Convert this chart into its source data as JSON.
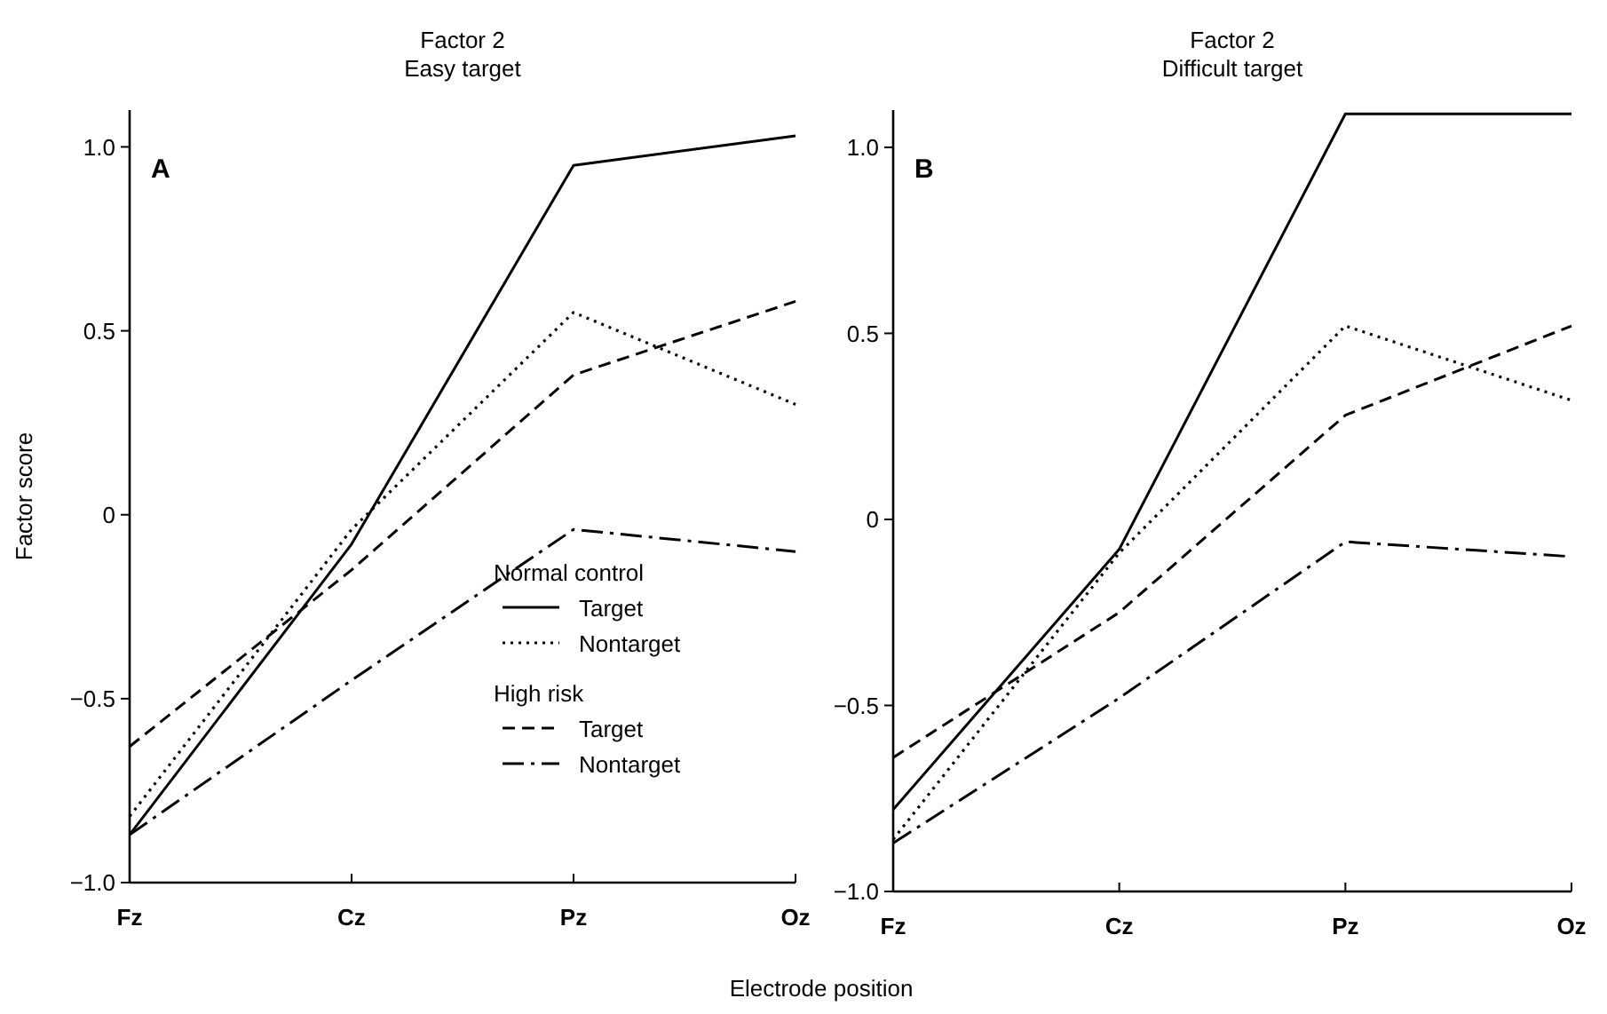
{
  "chart_data": [
    {
      "type": "line",
      "title": "Factor 2",
      "subtitle": "Easy target",
      "xlabel": "Electrode position",
      "ylabel": "Factor score",
      "categories": [
        "Fz",
        "Cz",
        "Pz",
        "Oz"
      ],
      "ylim": [
        -1.0,
        1.1
      ],
      "yticks": [
        {
          "value": -1,
          "label": "−1.0"
        },
        {
          "value": -0.5,
          "label": "−0.5"
        },
        0,
        {
          "value": 0.5,
          "label": "0.5"
        },
        {
          "value": 1,
          "label": "1.0"
        }
      ],
      "grid": false,
      "legend": "bottom right",
      "marker": "none",
      "annotations": [
        "A",
        "Normal control",
        "High risk"
      ],
      "series": [
        {
          "name": "Target",
          "color": "#000000",
          "line_style": "solid",
          "values": [
            -0.87,
            -0.08,
            0.95,
            1.03
          ]
        },
        {
          "name": "Nontarget",
          "color": "#000000",
          "line_style": "dotted",
          "values": [
            -0.82,
            -0.04,
            0.55,
            0.3
          ]
        },
        {
          "name": "Target",
          "color": "#000000",
          "line_style": "dashed",
          "values": [
            -0.63,
            -0.15,
            0.38,
            0.58
          ]
        },
        {
          "name": "Nontarget",
          "color": "#000000",
          "line_style": "dashdot",
          "values": [
            -0.87,
            -0.45,
            -0.04,
            -0.1
          ]
        }
      ]
    },
    {
      "type": "line",
      "title": "Factor 2",
      "subtitle": "Difficult target",
      "categories": [
        "Fz",
        "Cz",
        "Pz",
        "Oz"
      ],
      "ylim": [
        -1.0,
        1.1
      ],
      "yticks": [
        {
          "value": -1,
          "label": "−1.0"
        },
        {
          "value": -0.5,
          "label": "−0.5"
        },
        0,
        {
          "value": 0.5,
          "label": "0.5"
        },
        {
          "value": 1,
          "label": "1.0"
        }
      ],
      "grid": false,
      "legend": false,
      "marker": "none",
      "annotations": [
        "B"
      ],
      "series": [
        {
          "color": "#000000",
          "line_style": "solid",
          "values": [
            -0.78,
            -0.08,
            1.09,
            1.09
          ]
        },
        {
          "color": "#000000",
          "line_style": "dotted",
          "values": [
            -0.86,
            -0.09,
            0.52,
            0.32
          ]
        },
        {
          "color": "#000000",
          "line_style": "dashed",
          "values": [
            -0.64,
            -0.25,
            0.28,
            0.52
          ]
        },
        {
          "color": "#000000",
          "line_style": "dashdot",
          "values": [
            -0.87,
            -0.48,
            -0.06,
            -0.1
          ]
        }
      ]
    }
  ]
}
